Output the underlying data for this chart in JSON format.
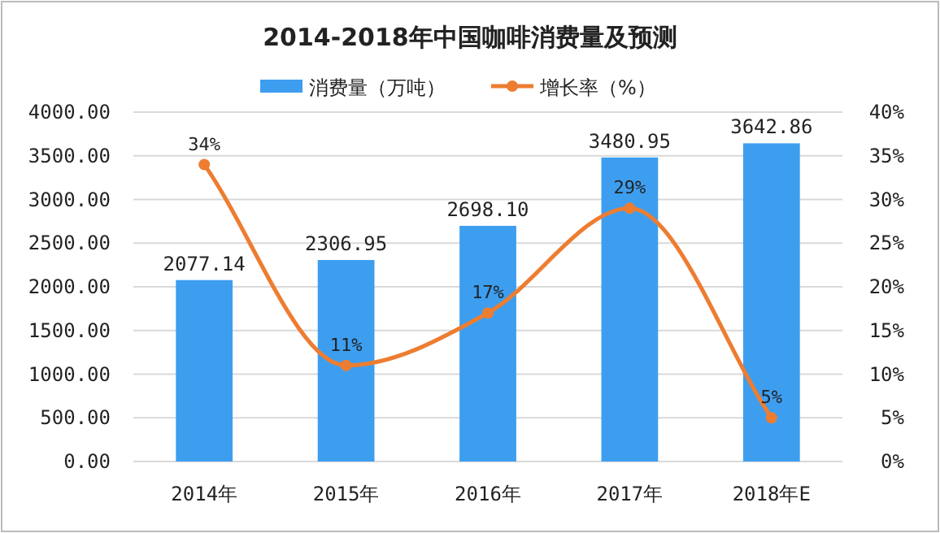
{
  "chart_data": {
    "type": "bar",
    "title": "2014-2018年中国咖啡消费量及预测",
    "categories": [
      "2014年",
      "2015年",
      "2016年",
      "2017年",
      "2018年E"
    ],
    "series": [
      {
        "name": "消费量（万吨）",
        "color": "#3d9ef0",
        "values": [
          2077.14,
          2306.95,
          2698.1,
          3480.95,
          3642.86
        ],
        "value_labels": [
          "2077.14",
          "2306.95",
          "2698.10",
          "3480.95",
          "3642.86"
        ]
      },
      {
        "name": "增长率（%）",
        "type": "line",
        "axis": "y2",
        "color": "#ed7d31",
        "values": [
          34,
          11,
          17,
          29,
          5
        ],
        "value_labels": [
          "34%",
          "11%",
          "17%",
          "29%",
          "5%"
        ]
      }
    ],
    "ylim": [
      0,
      4000
    ],
    "yticks": [
      {
        "value": 0,
        "label": "0.00"
      },
      {
        "value": 500,
        "label": "500.00"
      },
      {
        "value": 1000,
        "label": "1000.00"
      },
      {
        "value": 1500,
        "label": "1500.00"
      },
      {
        "value": 2000,
        "label": "2000.00"
      },
      {
        "value": 2500,
        "label": "2500.00"
      },
      {
        "value": 3000,
        "label": "3000.00"
      },
      {
        "value": 3500,
        "label": "3500.00"
      },
      {
        "value": 4000,
        "label": "4000.00"
      }
    ],
    "y2lim": [
      0,
      40
    ],
    "y2ticks": [
      {
        "value": 0,
        "label": "0%"
      },
      {
        "value": 5,
        "label": "5%"
      },
      {
        "value": 10,
        "label": "10%"
      },
      {
        "value": 15,
        "label": "15%"
      },
      {
        "value": 20,
        "label": "20%"
      },
      {
        "value": 25,
        "label": "25%"
      },
      {
        "value": 30,
        "label": "30%"
      },
      {
        "value": 35,
        "label": "35%"
      },
      {
        "value": 40,
        "label": "40%"
      }
    ],
    "grid": "y",
    "legend": "top",
    "marker": "circle",
    "line_style": "solid"
  }
}
